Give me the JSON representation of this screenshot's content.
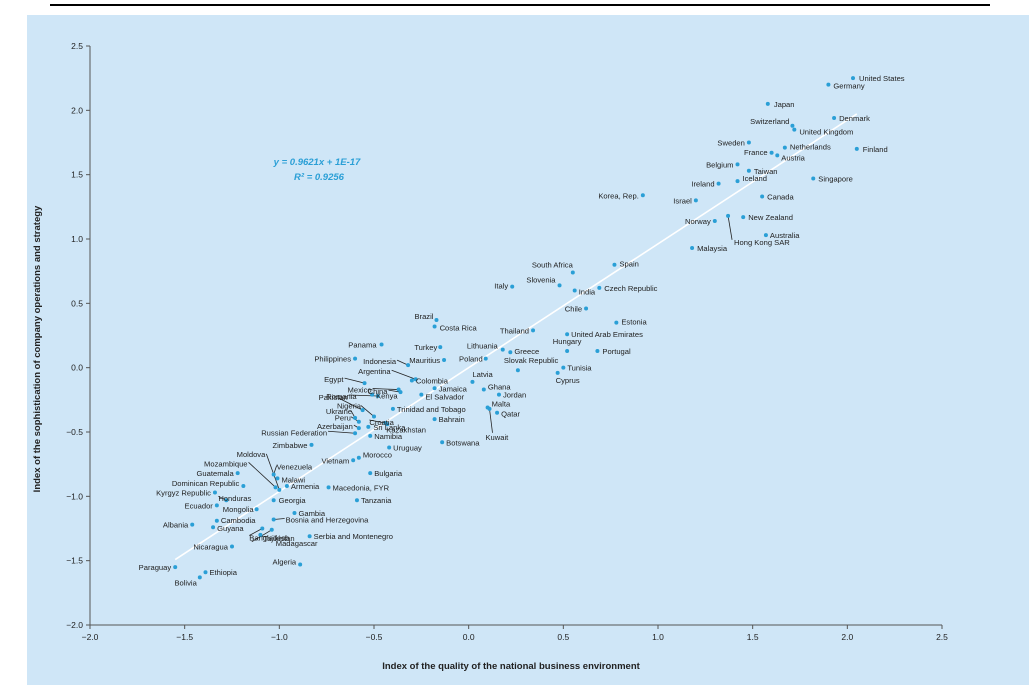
{
  "chart_data": {
    "type": "scatter",
    "title": "",
    "xlabel": "Index of the quality of the national business environment",
    "ylabel": "Index of the sophistication of company operations and strategy",
    "xlim": [
      -2.0,
      2.5
    ],
    "ylim": [
      -2.0,
      2.5
    ],
    "xticks": [
      "−2.0",
      "−1.5",
      "−1.0",
      "−0.5",
      "0.0",
      "0.5",
      "1.0",
      "1.5",
      "2.0",
      "2.5"
    ],
    "yticks": [
      "−2.0",
      "−1.5",
      "−1.0",
      "−0.5",
      "0.0",
      "0.5",
      "1.0",
      "1.5",
      "2.0",
      "2.5"
    ],
    "grid": false,
    "point_color": "#2a9fd6",
    "trendline": {
      "slope": 0.9621,
      "intercept": 0,
      "x_range": [
        -1.55,
        2.05
      ]
    },
    "equation_lines": [
      "y = 0.9621x + 1E-17",
      "R² = 0.9256"
    ],
    "points": [
      {
        "name": "United States",
        "x": 2.03,
        "y": 2.25
      },
      {
        "name": "Germany",
        "x": 1.9,
        "y": 2.2
      },
      {
        "name": "Japan",
        "x": 1.58,
        "y": 2.05
      },
      {
        "name": "Denmark",
        "x": 1.93,
        "y": 1.94
      },
      {
        "name": "Switzerland",
        "x": 1.71,
        "y": 1.88
      },
      {
        "name": "United Kingdom",
        "x": 1.72,
        "y": 1.85
      },
      {
        "name": "Sweden",
        "x": 1.48,
        "y": 1.75
      },
      {
        "name": "Netherlands",
        "x": 1.67,
        "y": 1.71
      },
      {
        "name": "France",
        "x": 1.6,
        "y": 1.67
      },
      {
        "name": "Austria",
        "x": 1.63,
        "y": 1.65
      },
      {
        "name": "Finland",
        "x": 2.05,
        "y": 1.7
      },
      {
        "name": "Belgium",
        "x": 1.42,
        "y": 1.58
      },
      {
        "name": "Taiwan",
        "x": 1.48,
        "y": 1.53
      },
      {
        "name": "Singapore",
        "x": 1.82,
        "y": 1.47
      },
      {
        "name": "Ireland",
        "x": 1.32,
        "y": 1.43
      },
      {
        "name": "Iceland",
        "x": 1.42,
        "y": 1.45
      },
      {
        "name": "Canada",
        "x": 1.55,
        "y": 1.33
      },
      {
        "name": "Korea, Rep.",
        "x": 0.92,
        "y": 1.34
      },
      {
        "name": "Israel",
        "x": 1.2,
        "y": 1.3
      },
      {
        "name": "Norway",
        "x": 1.3,
        "y": 1.14
      },
      {
        "name": "New Zealand",
        "x": 1.45,
        "y": 1.17
      },
      {
        "name": "Hong Kong SAR",
        "x": 1.37,
        "y": 1.18
      },
      {
        "name": "Australia",
        "x": 1.57,
        "y": 1.03
      },
      {
        "name": "Malaysia",
        "x": 1.18,
        "y": 0.93
      },
      {
        "name": "Spain",
        "x": 0.77,
        "y": 0.8
      },
      {
        "name": "South Africa",
        "x": 0.55,
        "y": 0.74
      },
      {
        "name": "Slovenia",
        "x": 0.48,
        "y": 0.64
      },
      {
        "name": "Italy",
        "x": 0.23,
        "y": 0.63
      },
      {
        "name": "India",
        "x": 0.56,
        "y": 0.6
      },
      {
        "name": "Czech Republic",
        "x": 0.69,
        "y": 0.62
      },
      {
        "name": "Chile",
        "x": 0.62,
        "y": 0.46
      },
      {
        "name": "Estonia",
        "x": 0.78,
        "y": 0.35
      },
      {
        "name": "Brazil",
        "x": -0.17,
        "y": 0.37
      },
      {
        "name": "Costa Rica",
        "x": -0.18,
        "y": 0.32
      },
      {
        "name": "Thailand",
        "x": 0.34,
        "y": 0.29
      },
      {
        "name": "United Arab Emirates",
        "x": 0.52,
        "y": 0.26
      },
      {
        "name": "Panama",
        "x": -0.46,
        "y": 0.18
      },
      {
        "name": "Turkey",
        "x": -0.15,
        "y": 0.16
      },
      {
        "name": "Lithuania",
        "x": 0.18,
        "y": 0.14
      },
      {
        "name": "Hungary",
        "x": 0.52,
        "y": 0.13
      },
      {
        "name": "Portugal",
        "x": 0.68,
        "y": 0.13
      },
      {
        "name": "Greece",
        "x": 0.22,
        "y": 0.12
      },
      {
        "name": "Philippines",
        "x": -0.6,
        "y": 0.07
      },
      {
        "name": "Mauritius",
        "x": -0.13,
        "y": 0.06
      },
      {
        "name": "Poland",
        "x": 0.09,
        "y": 0.07
      },
      {
        "name": "Indonesia",
        "x": -0.32,
        "y": 0.02
      },
      {
        "name": "Slovak Republic",
        "x": 0.26,
        "y": -0.02
      },
      {
        "name": "Tunisia",
        "x": 0.5,
        "y": 0.0
      },
      {
        "name": "Cyprus",
        "x": 0.47,
        "y": -0.04
      },
      {
        "name": "Argentina",
        "x": -0.28,
        "y": -0.09
      },
      {
        "name": "Egypt",
        "x": -0.55,
        "y": -0.12
      },
      {
        "name": "Colombia",
        "x": -0.3,
        "y": -0.1
      },
      {
        "name": "Latvia",
        "x": 0.02,
        "y": -0.11
      },
      {
        "name": "Mexico",
        "x": -0.37,
        "y": -0.17
      },
      {
        "name": "China",
        "x": -0.36,
        "y": -0.19
      },
      {
        "name": "Jamaica",
        "x": -0.18,
        "y": -0.16
      },
      {
        "name": "Ghana",
        "x": 0.08,
        "y": -0.17
      },
      {
        "name": "Pakistan",
        "x": -0.48,
        "y": -0.22
      },
      {
        "name": "Kenya",
        "x": -0.51,
        "y": -0.21
      },
      {
        "name": "El Salvador",
        "x": -0.25,
        "y": -0.21
      },
      {
        "name": "Jordan",
        "x": 0.16,
        "y": -0.21
      },
      {
        "name": "Romania",
        "x": -0.56,
        "y": -0.33
      },
      {
        "name": "Nigeria",
        "x": -0.5,
        "y": -0.38
      },
      {
        "name": "Trinidad and Tobago",
        "x": -0.4,
        "y": -0.32
      },
      {
        "name": "Malta",
        "x": 0.1,
        "y": -0.31
      },
      {
        "name": "Qatar",
        "x": 0.15,
        "y": -0.35
      },
      {
        "name": "Ukraine",
        "x": -0.6,
        "y": -0.39
      },
      {
        "name": "Peru",
        "x": -0.58,
        "y": -0.42
      },
      {
        "name": "Croatia",
        "x": -0.44,
        "y": -0.43
      },
      {
        "name": "Bahrain",
        "x": -0.18,
        "y": -0.4
      },
      {
        "name": "Kuwait",
        "x": 0.11,
        "y": -0.32
      },
      {
        "name": "Azerbaijan",
        "x": -0.58,
        "y": -0.47
      },
      {
        "name": "Sri Lanka",
        "x": -0.53,
        "y": -0.46
      },
      {
        "name": "Kazakhstan",
        "x": -0.43,
        "y": -0.44
      },
      {
        "name": "Russian Federation",
        "x": -0.6,
        "y": -0.51
      },
      {
        "name": "Namibia",
        "x": -0.52,
        "y": -0.53
      },
      {
        "name": "Zimbabwe",
        "x": -0.83,
        "y": -0.6
      },
      {
        "name": "Uruguay",
        "x": -0.42,
        "y": -0.62
      },
      {
        "name": "Botswana",
        "x": -0.14,
        "y": -0.58
      },
      {
        "name": "Vietnam",
        "x": -0.61,
        "y": -0.72
      },
      {
        "name": "Morocco",
        "x": -0.58,
        "y": -0.7
      },
      {
        "name": "Moldova",
        "x": -1.0,
        "y": -0.95
      },
      {
        "name": "Mozambique",
        "x": -1.02,
        "y": -0.93
      },
      {
        "name": "Venezuela",
        "x": -1.03,
        "y": -0.83
      },
      {
        "name": "Malawi",
        "x": -1.01,
        "y": -0.86
      },
      {
        "name": "Bulgaria",
        "x": -0.52,
        "y": -0.82
      },
      {
        "name": "Guatemala",
        "x": -1.22,
        "y": -0.82
      },
      {
        "name": "Armenia",
        "x": -0.96,
        "y": -0.92
      },
      {
        "name": "Macedonia, FYR",
        "x": -0.74,
        "y": -0.93
      },
      {
        "name": "Dominican Republic",
        "x": -1.19,
        "y": -0.92
      },
      {
        "name": "Kyrgyz Republic",
        "x": -1.34,
        "y": -0.97
      },
      {
        "name": "Honduras",
        "x": -1.28,
        "y": -1.03
      },
      {
        "name": "Georgia",
        "x": -1.03,
        "y": -1.03
      },
      {
        "name": "Tanzania",
        "x": -0.59,
        "y": -1.03
      },
      {
        "name": "Ecuador",
        "x": -1.33,
        "y": -1.07
      },
      {
        "name": "Mongolia",
        "x": -1.12,
        "y": -1.1
      },
      {
        "name": "Gambia",
        "x": -0.92,
        "y": -1.13
      },
      {
        "name": "Bosnia and Herzegovina",
        "x": -1.03,
        "y": -1.18
      },
      {
        "name": "Albania",
        "x": -1.46,
        "y": -1.22
      },
      {
        "name": "Cambodia",
        "x": -1.33,
        "y": -1.19
      },
      {
        "name": "Guyana",
        "x": -1.35,
        "y": -1.24
      },
      {
        "name": "Bangladesh",
        "x": -1.09,
        "y": -1.25
      },
      {
        "name": "Madagascar",
        "x": -1.04,
        "y": -1.26
      },
      {
        "name": "Tajikistan",
        "x": -1.1,
        "y": -1.3
      },
      {
        "name": "Serbia and Montenegro",
        "x": -0.84,
        "y": -1.31
      },
      {
        "name": "Nicaragua",
        "x": -1.25,
        "y": -1.39
      },
      {
        "name": "Algeria",
        "x": -0.89,
        "y": -1.53
      },
      {
        "name": "Paraguay",
        "x": -1.55,
        "y": -1.55
      },
      {
        "name": "Ethiopia",
        "x": -1.39,
        "y": -1.59
      },
      {
        "name": "Bolivia",
        "x": -1.42,
        "y": -1.63
      }
    ]
  }
}
